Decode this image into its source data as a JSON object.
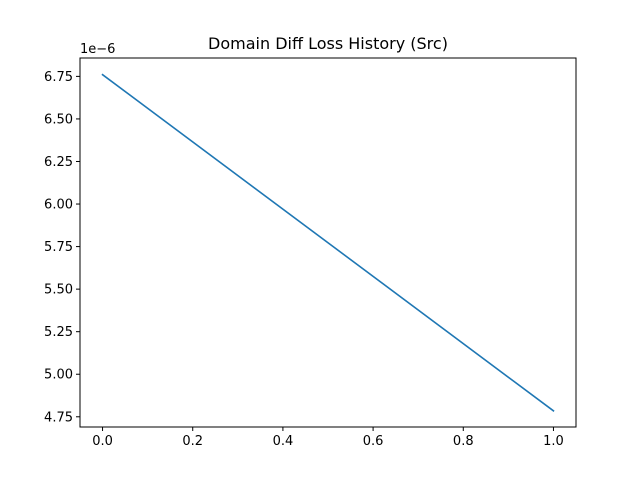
{
  "chart_data": {
    "type": "line",
    "title": "Domain Diff Loss History (Src)",
    "xlabel": "",
    "ylabel": "",
    "y_offset_label": "1e−6",
    "xlim": [
      -0.05,
      1.05
    ],
    "ylim": [
      4.69,
      6.858
    ],
    "x_ticks": [
      0.0,
      0.2,
      0.4,
      0.6,
      0.8,
      1.0
    ],
    "x_tick_labels": [
      "0.0",
      "0.2",
      "0.4",
      "0.6",
      "0.8",
      "1.0"
    ],
    "y_ticks": [
      4.75,
      5.0,
      5.25,
      5.5,
      5.75,
      6.0,
      6.25,
      6.5,
      6.75
    ],
    "y_tick_labels": [
      "4.75",
      "5.00",
      "5.25",
      "5.50",
      "5.75",
      "6.00",
      "6.25",
      "6.50",
      "6.75"
    ],
    "grid": false,
    "series": [
      {
        "x": [
          0.0,
          1.0
        ],
        "y": [
          6.76,
          4.785
        ],
        "color": "#1f77b4"
      }
    ]
  }
}
